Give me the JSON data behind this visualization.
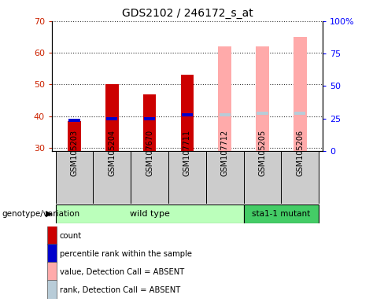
{
  "title": "GDS2102 / 246172_s_at",
  "samples": [
    "GSM105203",
    "GSM105204",
    "GSM107670",
    "GSM107711",
    "GSM107712",
    "GSM105205",
    "GSM105206"
  ],
  "groups": [
    "wild type",
    "wild type",
    "wild type",
    "wild type",
    "wild type",
    "sta1-1 mutant",
    "sta1-1 mutant"
  ],
  "count_values": [
    38.5,
    50.0,
    47.0,
    53.0,
    null,
    null,
    null
  ],
  "percentile_values": [
    38.8,
    39.2,
    39.3,
    40.5,
    null,
    null,
    null
  ],
  "absent_value_values": [
    null,
    null,
    null,
    null,
    62.0,
    62.0,
    65.0
  ],
  "absent_rank_values": [
    null,
    null,
    null,
    null,
    40.5,
    41.0,
    41.0
  ],
  "ylim_left": [
    29,
    70
  ],
  "ylim_right": [
    0,
    100
  ],
  "yticks_left": [
    30,
    40,
    50,
    60,
    70
  ],
  "yticks_right": [
    0,
    25,
    50,
    75,
    100
  ],
  "color_count": "#cc0000",
  "color_percentile": "#0000cc",
  "color_absent_value": "#ffaaaa",
  "color_absent_rank": "#b8ccd8",
  "wt_color": "#bbffbb",
  "mut_color": "#44cc66",
  "bar_width": 0.35,
  "bg_color_label": "#cccccc",
  "genotype_label": "genotype/variation",
  "legend_items": [
    {
      "label": "count",
      "color": "#cc0000"
    },
    {
      "label": "percentile rank within the sample",
      "color": "#0000cc"
    },
    {
      "label": "value, Detection Call = ABSENT",
      "color": "#ffaaaa"
    },
    {
      "label": "rank, Detection Call = ABSENT",
      "color": "#b8ccd8"
    }
  ]
}
